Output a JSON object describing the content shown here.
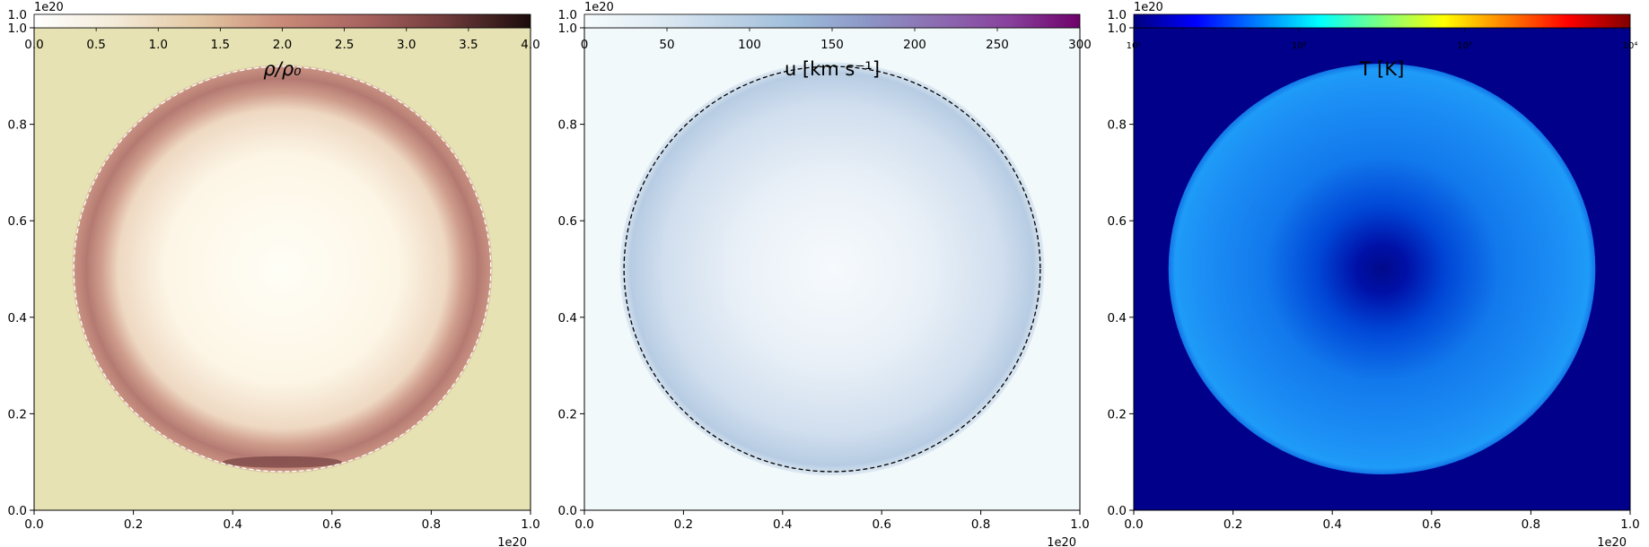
{
  "chart_data": [
    {
      "type": "heatmap",
      "title": "ρ/ρ₀",
      "xlim": [
        0,
        1.0
      ],
      "ylim": [
        0,
        1.0
      ],
      "axis_offset_label": "1e20",
      "xticks": [
        "0.0",
        "0.2",
        "0.4",
        "0.6",
        "0.8",
        "1.0"
      ],
      "yticks": [
        "0.0",
        "0.2",
        "0.4",
        "0.6",
        "0.8",
        "1.0"
      ],
      "colorbar": {
        "range": [
          0,
          4.0
        ],
        "scale": "linear",
        "colormap": "pink-brown",
        "ticks": [
          "0.0",
          "0.5",
          "1.0",
          "1.5",
          "2.0",
          "2.5",
          "3.0",
          "3.5",
          "4.0"
        ],
        "stops": [
          "#ffffff",
          "#f3ead7",
          "#e3c7a3",
          "#c98a78",
          "#a7625f",
          "#6e3a3a",
          "#1b0b0b"
        ]
      },
      "field": {
        "center": [
          0.5,
          0.5
        ],
        "ring_radius": 0.42,
        "ring_value": 2.6,
        "inner_value": 0.05,
        "ambient_value": 1.0,
        "ambient_color": "#e6e2b3",
        "inner_color": "#fffef6",
        "ring_color": "#b47a72"
      },
      "dashed_circle": {
        "center": [
          0.5,
          0.5
        ],
        "radius": 0.42,
        "color": "#ffffff"
      }
    },
    {
      "type": "heatmap",
      "title": "u [km s⁻¹]",
      "xlim": [
        0,
        1.0
      ],
      "ylim": [
        0,
        1.0
      ],
      "axis_offset_label": "1e20",
      "xticks": [
        "0.0",
        "0.2",
        "0.4",
        "0.6",
        "0.8",
        "1.0"
      ],
      "yticks": [
        "0.0",
        "0.2",
        "0.4",
        "0.6",
        "0.8",
        "1.0"
      ],
      "colorbar": {
        "range": [
          0,
          300
        ],
        "scale": "linear",
        "colormap": "BuPu",
        "ticks": [
          "0",
          "50",
          "100",
          "150",
          "200",
          "250",
          "300"
        ],
        "stops": [
          "#f7fcfd",
          "#e0ecf4",
          "#bfd3e6",
          "#9ebcda",
          "#8c96c6",
          "#8c6bb1",
          "#88419d",
          "#6e016b"
        ]
      },
      "field": {
        "center": [
          0.5,
          0.5
        ],
        "ring_radius": 0.42,
        "ambient_color": "#f2f9fb",
        "inner_color": "#f6fafd",
        "edge_color": "#b7cce3"
      },
      "dashed_circle": {
        "center": [
          0.5,
          0.5
        ],
        "radius": 0.42,
        "color": "#000000"
      }
    },
    {
      "type": "heatmap",
      "title": "T [K]",
      "xlim": [
        0,
        1.0
      ],
      "ylim": [
        0,
        1.0
      ],
      "axis_offset_label": "1e20",
      "xticks": [
        "0.0",
        "0.2",
        "0.4",
        "0.6",
        "0.8",
        "1.0"
      ],
      "yticks": [
        "0.0",
        "0.2",
        "0.4",
        "0.6",
        "0.8",
        "1.0"
      ],
      "colorbar": {
        "range": [
          10,
          10000
        ],
        "scale": "log",
        "colormap": "jet",
        "ticks": [
          "10¹",
          "10²",
          "10³",
          "10⁴"
        ],
        "stops": [
          "#00007f",
          "#0000ff",
          "#007fff",
          "#00ffff",
          "#7fff7f",
          "#ffff00",
          "#ff7f00",
          "#ff0000",
          "#7f0000"
        ]
      },
      "field": {
        "center": [
          0.5,
          0.5
        ],
        "ring_radius": 0.43,
        "ambient_color": "#00008b",
        "shell_color": "#1c8ff5",
        "core_color": "#000a8a"
      }
    }
  ]
}
